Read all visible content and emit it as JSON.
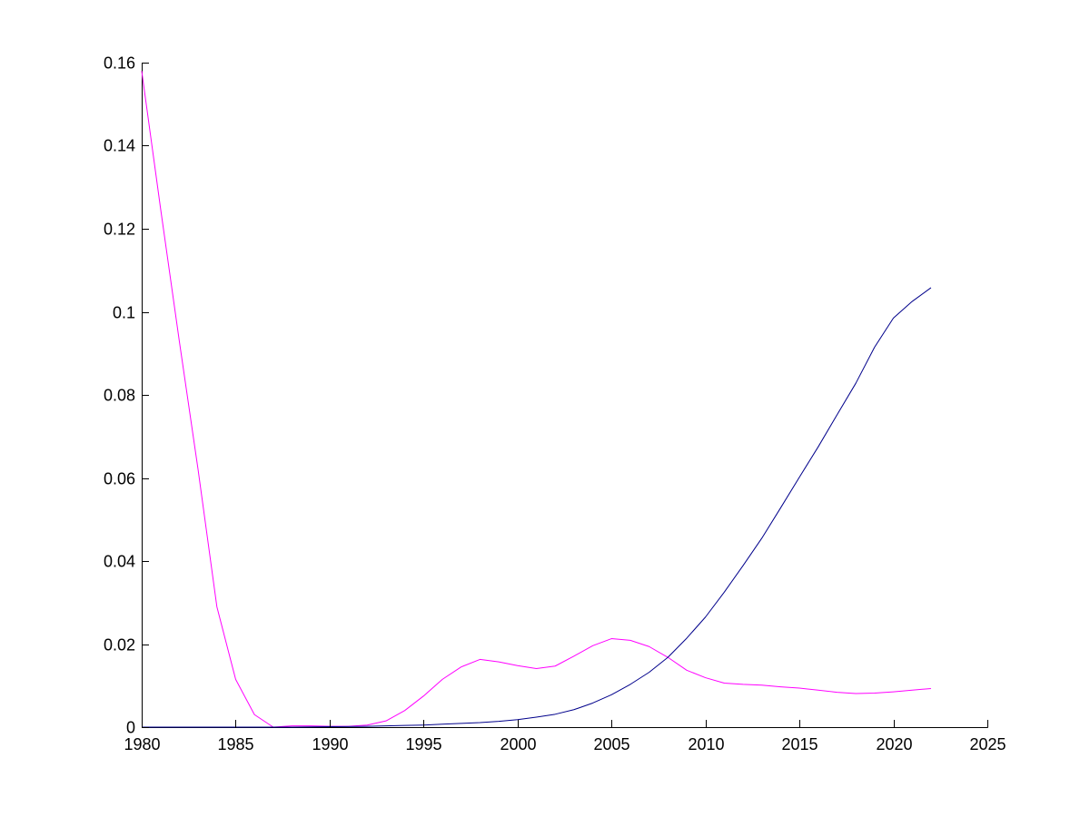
{
  "chart_data": {
    "type": "line",
    "title": "",
    "xlabel": "",
    "ylabel": "",
    "xlim": [
      1980,
      2025
    ],
    "ylim": [
      0,
      0.16
    ],
    "grid": false,
    "legend": "none",
    "x_ticks": [
      1980,
      1985,
      1990,
      1995,
      2000,
      2005,
      2010,
      2015,
      2020,
      2025
    ],
    "x_tick_labels": [
      "1980",
      "1985",
      "1990",
      "1995",
      "2000",
      "2005",
      "2010",
      "2015",
      "2020",
      "2025"
    ],
    "y_ticks": [
      0,
      0.02,
      0.04,
      0.06,
      0.08,
      0.1,
      0.12,
      0.14,
      0.16
    ],
    "y_tick_labels": [
      "0",
      "0.02",
      "0.04",
      "0.06",
      "0.08",
      "0.1",
      "0.12",
      "0.14",
      "0.16"
    ],
    "series": [
      {
        "color": "#ff00ff",
        "x": [
          1980,
          1981,
          1982,
          1983,
          1984,
          1985,
          1986,
          1987,
          1988,
          1989,
          1990,
          1991,
          1992,
          1993,
          1994,
          1995,
          1996,
          1997,
          1998,
          1999,
          2000,
          2001,
          2002,
          2003,
          2004,
          2005,
          2006,
          2007,
          2008,
          2009,
          2010,
          2011,
          2012,
          2013,
          2014,
          2015,
          2016,
          2017,
          2018,
          2019,
          2020,
          2021,
          2022
        ],
        "y": [
          0.158,
          0.125,
          0.093,
          0.062,
          0.029,
          0.0115,
          0.003,
          0.0,
          0.0003,
          0.0003,
          0.0002,
          0.0002,
          0.0005,
          0.0015,
          0.004,
          0.0075,
          0.0115,
          0.0145,
          0.0163,
          0.0157,
          0.0148,
          0.0141,
          0.0147,
          0.0171,
          0.0196,
          0.0213,
          0.0209,
          0.0194,
          0.0168,
          0.0137,
          0.0119,
          0.0106,
          0.0103,
          0.0101,
          0.0097,
          0.0094,
          0.0089,
          0.0084,
          0.0081,
          0.0082,
          0.0085,
          0.0089,
          0.0093
        ]
      },
      {
        "color": "#00008b",
        "x": [
          1980,
          1982,
          1984,
          1986,
          1988,
          1990,
          1992,
          1994,
          1995,
          1996,
          1997,
          1998,
          1999,
          2000,
          2001,
          2002,
          2003,
          2004,
          2005,
          2006,
          2007,
          2008,
          2009,
          2010,
          2011,
          2012,
          2013,
          2014,
          2015,
          2016,
          2017,
          2018,
          2019,
          2020,
          2021,
          2022
        ],
        "y": [
          0.0,
          0.0,
          0.0,
          0.0,
          0.0,
          0.0001,
          0.0002,
          0.0004,
          0.0005,
          0.0007,
          0.0009,
          0.0011,
          0.0014,
          0.0018,
          0.0024,
          0.0031,
          0.0042,
          0.0058,
          0.0078,
          0.0103,
          0.0132,
          0.0168,
          0.0214,
          0.0265,
          0.0325,
          0.0389,
          0.0455,
          0.0528,
          0.0602,
          0.0675,
          0.0752,
          0.0828,
          0.0915,
          0.0985,
          0.1025,
          0.1058
        ]
      }
    ]
  }
}
